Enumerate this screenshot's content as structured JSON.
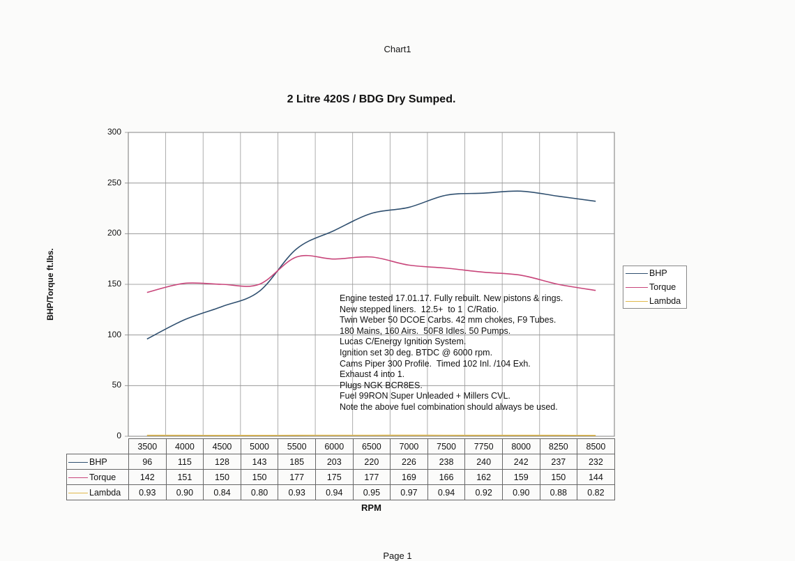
{
  "sheet_title": "Chart1",
  "footer": "Page 1",
  "chart_data": {
    "type": "line",
    "title": "2 Litre 420S / BDG Dry Sumped.",
    "xlabel": "RPM",
    "ylabel": "BHP/Torque ft.lbs.",
    "ylim": [
      0,
      300
    ],
    "yticks": [
      0,
      50,
      100,
      150,
      200,
      250,
      300
    ],
    "grid": true,
    "legend": "right",
    "categories": [
      "3500",
      "4000",
      "4500",
      "5000",
      "5500",
      "6000",
      "6500",
      "7000",
      "7500",
      "7750",
      "8000",
      "8250",
      "8500"
    ],
    "series": [
      {
        "name": "BHP",
        "color": "#2f4f6f",
        "values": [
          96,
          115,
          128,
          143,
          185,
          203,
          220,
          226,
          238,
          240,
          242,
          237,
          232
        ]
      },
      {
        "name": "Torque",
        "color": "#c8457a",
        "values": [
          142,
          151,
          150,
          150,
          177,
          175,
          177,
          169,
          166,
          162,
          159,
          150,
          144
        ]
      },
      {
        "name": "Lambda",
        "color": "#e0b84a",
        "values": [
          0.93,
          0.9,
          0.84,
          0.8,
          0.93,
          0.94,
          0.95,
          0.97,
          0.94,
          0.92,
          0.9,
          0.88,
          0.82
        ]
      }
    ],
    "table_values": {
      "BHP": [
        "96",
        "115",
        "128",
        "143",
        "185",
        "203",
        "220",
        "226",
        "238",
        "240",
        "242",
        "237",
        "232"
      ],
      "Torque": [
        "142",
        "151",
        "150",
        "150",
        "177",
        "175",
        "177",
        "169",
        "166",
        "162",
        "159",
        "150",
        "144"
      ],
      "Lambda": [
        "0.93",
        "0.90",
        "0.84",
        "0.80",
        "0.93",
        "0.94",
        "0.95",
        "0.97",
        "0.94",
        "0.92",
        "0.90",
        "0.88",
        "0.82"
      ]
    },
    "annotation": [
      "Engine tested 17.01.17. Fully rebuilt. New pistons & rings.",
      "New stepped liners.  12.5+  to 1  C/Ratio.",
      "Twin Weber 50 DCOE Carbs. 42 mm chokes, F9 Tubes.",
      "180 Mains, 160 Airs.  50F8 Idles. 50 Pumps.",
      "Lucas C/Energy Ignition System.",
      "Ignition set 30 deg. BTDC @ 6000 rpm.",
      "Cams Piper 300 Profile.  Timed 102 Inl. /104 Exh.",
      "Exhaust 4 into 1.",
      "Plugs NGK BCR8ES.",
      "Fuel 99RON Super Unleaded + Millers CVL.",
      "Note the above fuel combination should always be used."
    ]
  }
}
